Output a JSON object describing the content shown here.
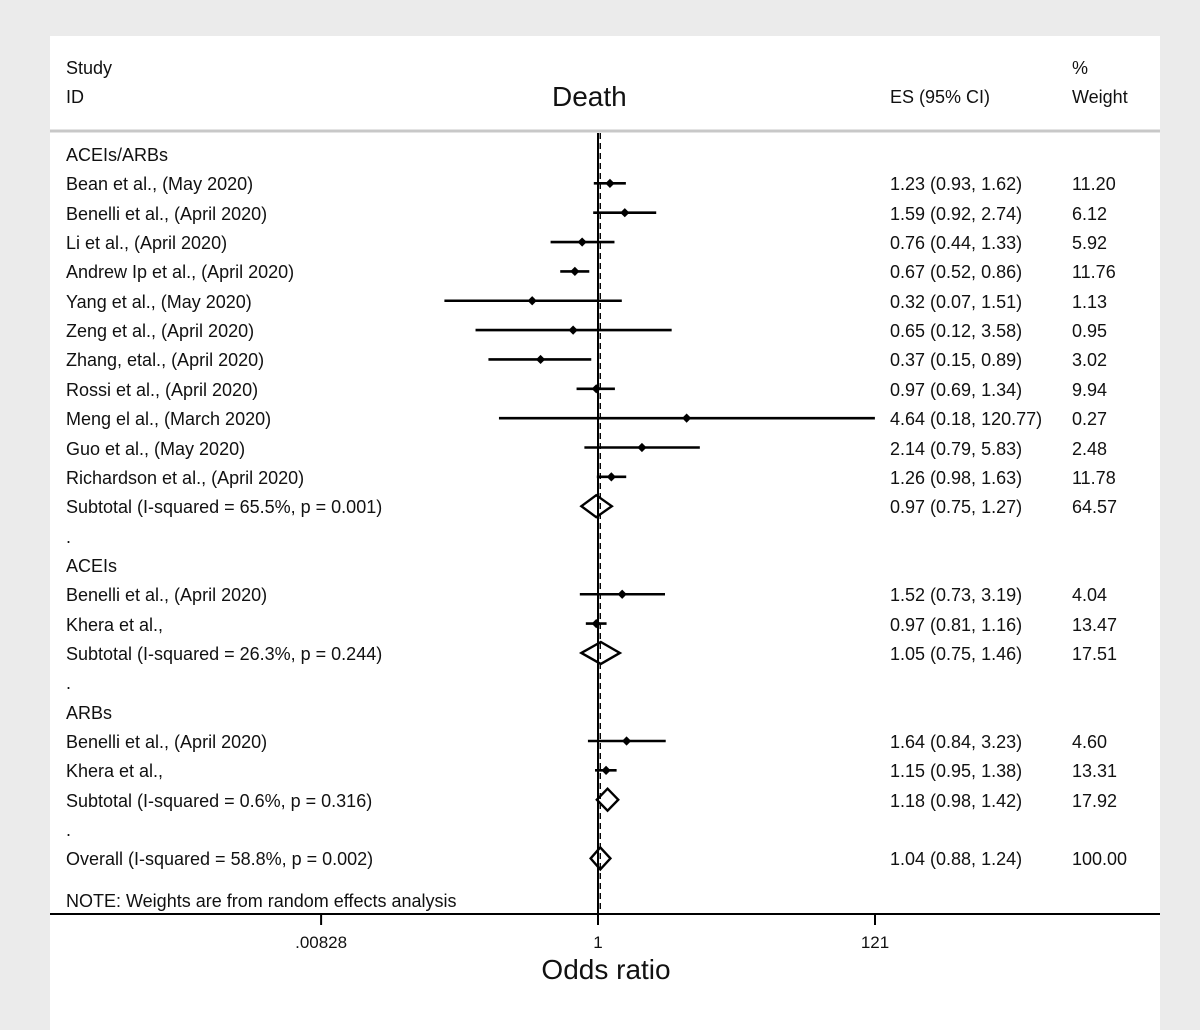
{
  "header": {
    "study_line1": "Study",
    "study_line2": "ID",
    "title": "Death",
    "es_header": "ES (95% CI)",
    "weight_line1": "%",
    "weight_line2": "Weight"
  },
  "note": "NOTE: Weights are from random effects analysis",
  "colors": {
    "background": "#ebebeb",
    "panel": "#ffffff",
    "ink": "#000000",
    "rule": "#c8c8c8"
  },
  "chart_data": {
    "type": "forest",
    "title": "Death",
    "xlabel": "Odds ratio",
    "x_scale": "log",
    "x_ticks": [
      {
        "label": ".00828",
        "value": 0.00828
      },
      {
        "label": "1",
        "value": 1
      },
      {
        "label": "121",
        "value": 121
      }
    ],
    "reference_line": 1,
    "overall_dashed_line": 1.04,
    "rows": [
      {
        "kind": "group",
        "label": "ACEIs/ARBs"
      },
      {
        "kind": "study",
        "label": "Bean et al., (May 2020)",
        "es": 1.23,
        "lo": 0.93,
        "hi": 1.62,
        "es_text": "1.23 (0.93, 1.62)",
        "weight": "11.20"
      },
      {
        "kind": "study",
        "label": "Benelli et al., (April 2020)",
        "es": 1.59,
        "lo": 0.92,
        "hi": 2.74,
        "es_text": "1.59 (0.92, 2.74)",
        "weight": "6.12"
      },
      {
        "kind": "study",
        "label": "Li et al., (April 2020)",
        "es": 0.76,
        "lo": 0.44,
        "hi": 1.33,
        "es_text": "0.76 (0.44, 1.33)",
        "weight": "5.92"
      },
      {
        "kind": "study",
        "label": "Andrew Ip et al., (April 2020)",
        "es": 0.67,
        "lo": 0.52,
        "hi": 0.86,
        "es_text": "0.67 (0.52, 0.86)",
        "weight": "11.76"
      },
      {
        "kind": "study",
        "label": "Yang et al., (May 2020)",
        "es": 0.32,
        "lo": 0.07,
        "hi": 1.51,
        "es_text": "0.32 (0.07, 1.51)",
        "weight": "1.13"
      },
      {
        "kind": "study",
        "label": "Zeng et al., (April 2020)",
        "es": 0.65,
        "lo": 0.12,
        "hi": 3.58,
        "es_text": "0.65 (0.12, 3.58)",
        "weight": "0.95"
      },
      {
        "kind": "study",
        "label": "Zhang, etal., (April 2020)",
        "es": 0.37,
        "lo": 0.15,
        "hi": 0.89,
        "es_text": "0.37 (0.15, 0.89)",
        "weight": "3.02"
      },
      {
        "kind": "study",
        "label": "Rossi et al., (April 2020)",
        "es": 0.97,
        "lo": 0.69,
        "hi": 1.34,
        "es_text": "0.97 (0.69, 1.34)",
        "weight": "9.94"
      },
      {
        "kind": "study",
        "label": "Meng el al., (March 2020)",
        "es": 4.64,
        "lo": 0.18,
        "hi": 120.77,
        "es_text": "4.64 (0.18, 120.77)",
        "weight": "0.27"
      },
      {
        "kind": "study",
        "label": "Guo et al., (May 2020)",
        "es": 2.14,
        "lo": 0.79,
        "hi": 5.83,
        "es_text": "2.14 (0.79, 5.83)",
        "weight": "2.48"
      },
      {
        "kind": "study",
        "label": "Richardson et al., (April 2020)",
        "es": 1.26,
        "lo": 0.98,
        "hi": 1.63,
        "es_text": "1.26 (0.98, 1.63)",
        "weight": "11.78"
      },
      {
        "kind": "subtotal",
        "label": "Subtotal  (I-squared = 65.5%, p = 0.001)",
        "es": 0.97,
        "lo": 0.75,
        "hi": 1.27,
        "es_text": "0.97 (0.75, 1.27)",
        "weight": "64.57"
      },
      {
        "kind": "spacer",
        "label": "."
      },
      {
        "kind": "group",
        "label": "ACEIs"
      },
      {
        "kind": "study",
        "label": "Benelli et al., (April 2020)",
        "es": 1.52,
        "lo": 0.73,
        "hi": 3.19,
        "es_text": "1.52 (0.73, 3.19)",
        "weight": "4.04"
      },
      {
        "kind": "study",
        "label": "Khera et al.,",
        "es": 0.97,
        "lo": 0.81,
        "hi": 1.16,
        "es_text": "0.97 (0.81, 1.16)",
        "weight": "13.47"
      },
      {
        "kind": "subtotal",
        "label": "Subtotal  (I-squared = 26.3%, p = 0.244)",
        "es": 1.05,
        "lo": 0.75,
        "hi": 1.46,
        "es_text": "1.05 (0.75, 1.46)",
        "weight": "17.51"
      },
      {
        "kind": "spacer",
        "label": "."
      },
      {
        "kind": "group",
        "label": "ARBs"
      },
      {
        "kind": "study",
        "label": "Benelli et al., (April 2020)",
        "es": 1.64,
        "lo": 0.84,
        "hi": 3.23,
        "es_text": "1.64 (0.84, 3.23)",
        "weight": "4.60"
      },
      {
        "kind": "study",
        "label": "Khera et al.,",
        "es": 1.15,
        "lo": 0.95,
        "hi": 1.38,
        "es_text": "1.15 (0.95, 1.38)",
        "weight": "13.31"
      },
      {
        "kind": "subtotal",
        "label": "Subtotal  (I-squared = 0.6%, p = 0.316)",
        "es": 1.18,
        "lo": 0.98,
        "hi": 1.42,
        "es_text": "1.18 (0.98, 1.42)",
        "weight": "17.92"
      },
      {
        "kind": "spacer",
        "label": "."
      },
      {
        "kind": "overall",
        "label": "Overall  (I-squared = 58.8%, p = 0.002)",
        "es": 1.04,
        "lo": 0.88,
        "hi": 1.24,
        "es_text": "1.04 (0.88, 1.24)",
        "weight": "100.00"
      }
    ]
  }
}
